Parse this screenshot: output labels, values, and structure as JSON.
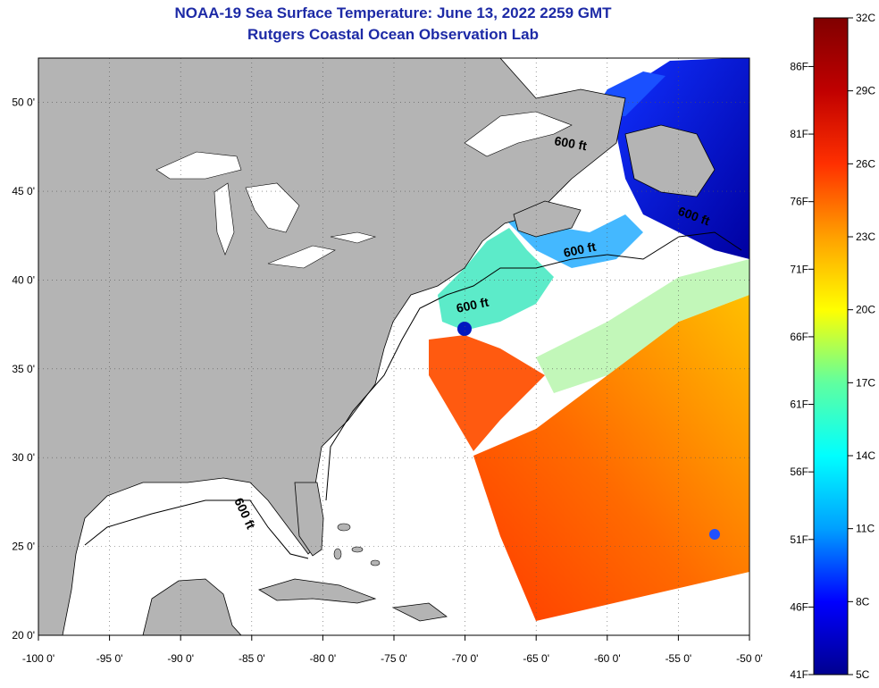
{
  "title": "NOAA-19 Sea Surface Temperature:  June 13, 2022 2259 GMT",
  "subtitle": "Rutgers Coastal Ocean Observation Lab",
  "map": {
    "lon_range": [
      -100,
      -50
    ],
    "lat_range": [
      20,
      52.5
    ],
    "lon_ticks": [
      "-100 0'",
      "-95 0'",
      "-90 0'",
      "-85 0'",
      "-80 0'",
      "-75 0'",
      "-70 0'",
      "-65 0'",
      "-60 0'",
      "-55 0'",
      "-50 0'"
    ],
    "lat_ticks": [
      "20 0'",
      "25 0'",
      "30 0'",
      "35 0'",
      "40 0'",
      "45 0'",
      "50 0'"
    ],
    "contour_labels": [
      "600 ft",
      "600 ft",
      "600 ft",
      "600 ft",
      "600 ft"
    ],
    "land_color": "#b4b4b4",
    "cloud_color": "#ffffff"
  },
  "colorbar": {
    "fahrenheit_labels": [
      "86F",
      "81F",
      "76F",
      "71F",
      "66F",
      "61F",
      "56F",
      "51F",
      "46F",
      "41F"
    ],
    "celsius_labels": [
      "32C",
      "29C",
      "26C",
      "23C",
      "20C",
      "17C",
      "14C",
      "11C",
      "8C",
      "5C"
    ],
    "min_c": 5,
    "max_c": 32,
    "colors_low_to_high": [
      "#00008f",
      "#0000ff",
      "#00a0ff",
      "#00ffff",
      "#60ff9f",
      "#ffff00",
      "#ffa000",
      "#ff3000",
      "#c00000",
      "#800000"
    ]
  }
}
